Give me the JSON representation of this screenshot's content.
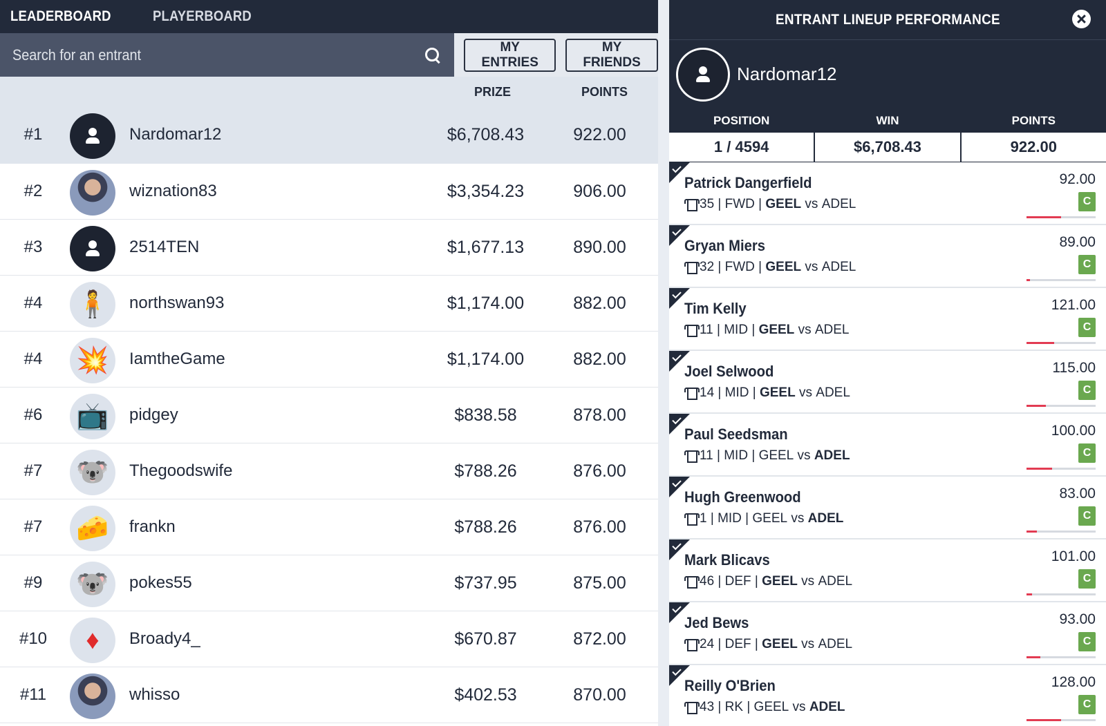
{
  "nav": {
    "tabs": [
      "LEADERBOARD",
      "PLAYERBOARD"
    ]
  },
  "search": {
    "placeholder": "Search for an entrant",
    "value": ""
  },
  "buttons": {
    "my_entries": "MY ENTRIES",
    "my_friends": "MY FRIENDS"
  },
  "table": {
    "headers": {
      "prize": "PRIZE",
      "points": "POINTS"
    },
    "rows": [
      {
        "rank": "#1",
        "name": "Nardomar12",
        "prize": "$6,708.43",
        "points": "922.00",
        "avatar": "default",
        "avatar_icon": "user-icon"
      },
      {
        "rank": "#2",
        "name": "wiznation83",
        "prize": "$3,354.23",
        "points": "906.00",
        "avatar": "photo",
        "avatar_icon": "basketball-player-photo"
      },
      {
        "rank": "#3",
        "name": "2514TEN",
        "prize": "$1,677.13",
        "points": "890.00",
        "avatar": "default",
        "avatar_icon": "user-icon"
      },
      {
        "rank": "#4",
        "name": "northswan93",
        "prize": "$1,174.00",
        "points": "882.00",
        "avatar": "light",
        "avatar_icon": "cartoon-character-icon",
        "glyph": "🧍"
      },
      {
        "rank": "#4",
        "name": "IamtheGame",
        "prize": "$1,174.00",
        "points": "882.00",
        "avatar": "light",
        "avatar_icon": "explosion-icon",
        "glyph": "💥"
      },
      {
        "rank": "#6",
        "name": "pidgey",
        "prize": "$838.58",
        "points": "878.00",
        "avatar": "light",
        "avatar_icon": "television-icon",
        "glyph": "📺"
      },
      {
        "rank": "#7",
        "name": "Thegoodswife",
        "prize": "$788.26",
        "points": "876.00",
        "avatar": "light",
        "avatar_icon": "koala-icon",
        "glyph": "🐨"
      },
      {
        "rank": "#7",
        "name": "frankn",
        "prize": "$788.26",
        "points": "876.00",
        "avatar": "light",
        "avatar_icon": "cheese-icon",
        "glyph": "🧀"
      },
      {
        "rank": "#9",
        "name": "pokes55",
        "prize": "$737.95",
        "points": "875.00",
        "avatar": "light",
        "avatar_icon": "koala-icon",
        "glyph": "🐨"
      },
      {
        "rank": "#10",
        "name": "Broady4_",
        "prize": "$670.87",
        "points": "872.00",
        "avatar": "light",
        "avatar_icon": "diamond-icon",
        "glyph": "♦"
      },
      {
        "rank": "#11",
        "name": "whisso",
        "prize": "$402.53",
        "points": "870.00",
        "avatar": "photo",
        "avatar_icon": "man-with-glasses-photo"
      }
    ]
  },
  "panel": {
    "title": "ENTRANT LINEUP PERFORMANCE",
    "entrant": "Nardomar12",
    "stats": [
      {
        "label": "POSITION",
        "value": "1 / 4594"
      },
      {
        "label": "WIN",
        "value": "$6,708.43"
      },
      {
        "label": "POINTS",
        "value": "922.00"
      }
    ],
    "players": [
      {
        "name": "Patrick Dangerfield",
        "number": "35",
        "pos": "FWD",
        "home": "GEEL",
        "away": "ADEL",
        "bold": "home",
        "points": "92.00",
        "badge": "C",
        "progress": 0.5
      },
      {
        "name": "Gryan Miers",
        "number": "32",
        "pos": "FWD",
        "home": "GEEL",
        "away": "ADEL",
        "bold": "home",
        "points": "89.00",
        "badge": "C",
        "progress": 0.05
      },
      {
        "name": "Tim Kelly",
        "number": "11",
        "pos": "MID",
        "home": "GEEL",
        "away": "ADEL",
        "bold": "home",
        "points": "121.00",
        "badge": "C",
        "progress": 0.4
      },
      {
        "name": "Joel Selwood",
        "number": "14",
        "pos": "MID",
        "home": "GEEL",
        "away": "ADEL",
        "bold": "home",
        "points": "115.00",
        "badge": "C",
        "progress": 0.28
      },
      {
        "name": "Paul Seedsman",
        "number": "11",
        "pos": "MID",
        "home": "GEEL",
        "away": "ADEL",
        "bold": "away",
        "points": "100.00",
        "badge": "C",
        "progress": 0.37
      },
      {
        "name": "Hugh Greenwood",
        "number": "1",
        "pos": "MID",
        "home": "GEEL",
        "away": "ADEL",
        "bold": "away",
        "points": "83.00",
        "badge": "C",
        "progress": 0.15
      },
      {
        "name": "Mark Blicavs",
        "number": "46",
        "pos": "DEF",
        "home": "GEEL",
        "away": "ADEL",
        "bold": "home",
        "points": "101.00",
        "badge": "C",
        "progress": 0.08
      },
      {
        "name": "Jed Bews",
        "number": "24",
        "pos": "DEF",
        "home": "GEEL",
        "away": "ADEL",
        "bold": "home",
        "points": "93.00",
        "badge": "C",
        "progress": 0.2
      },
      {
        "name": "Reilly O'Brien",
        "number": "43",
        "pos": "RK",
        "home": "GEEL",
        "away": "ADEL",
        "bold": "away",
        "points": "128.00",
        "badge": "C",
        "progress": 0.5
      }
    ]
  },
  "colors": {
    "navy": "#222a3a",
    "search_bg": "#4b5468",
    "highlight_row": "#dfe5ed",
    "badge_green": "#6aa84f",
    "progress_red": "#e23b52"
  }
}
